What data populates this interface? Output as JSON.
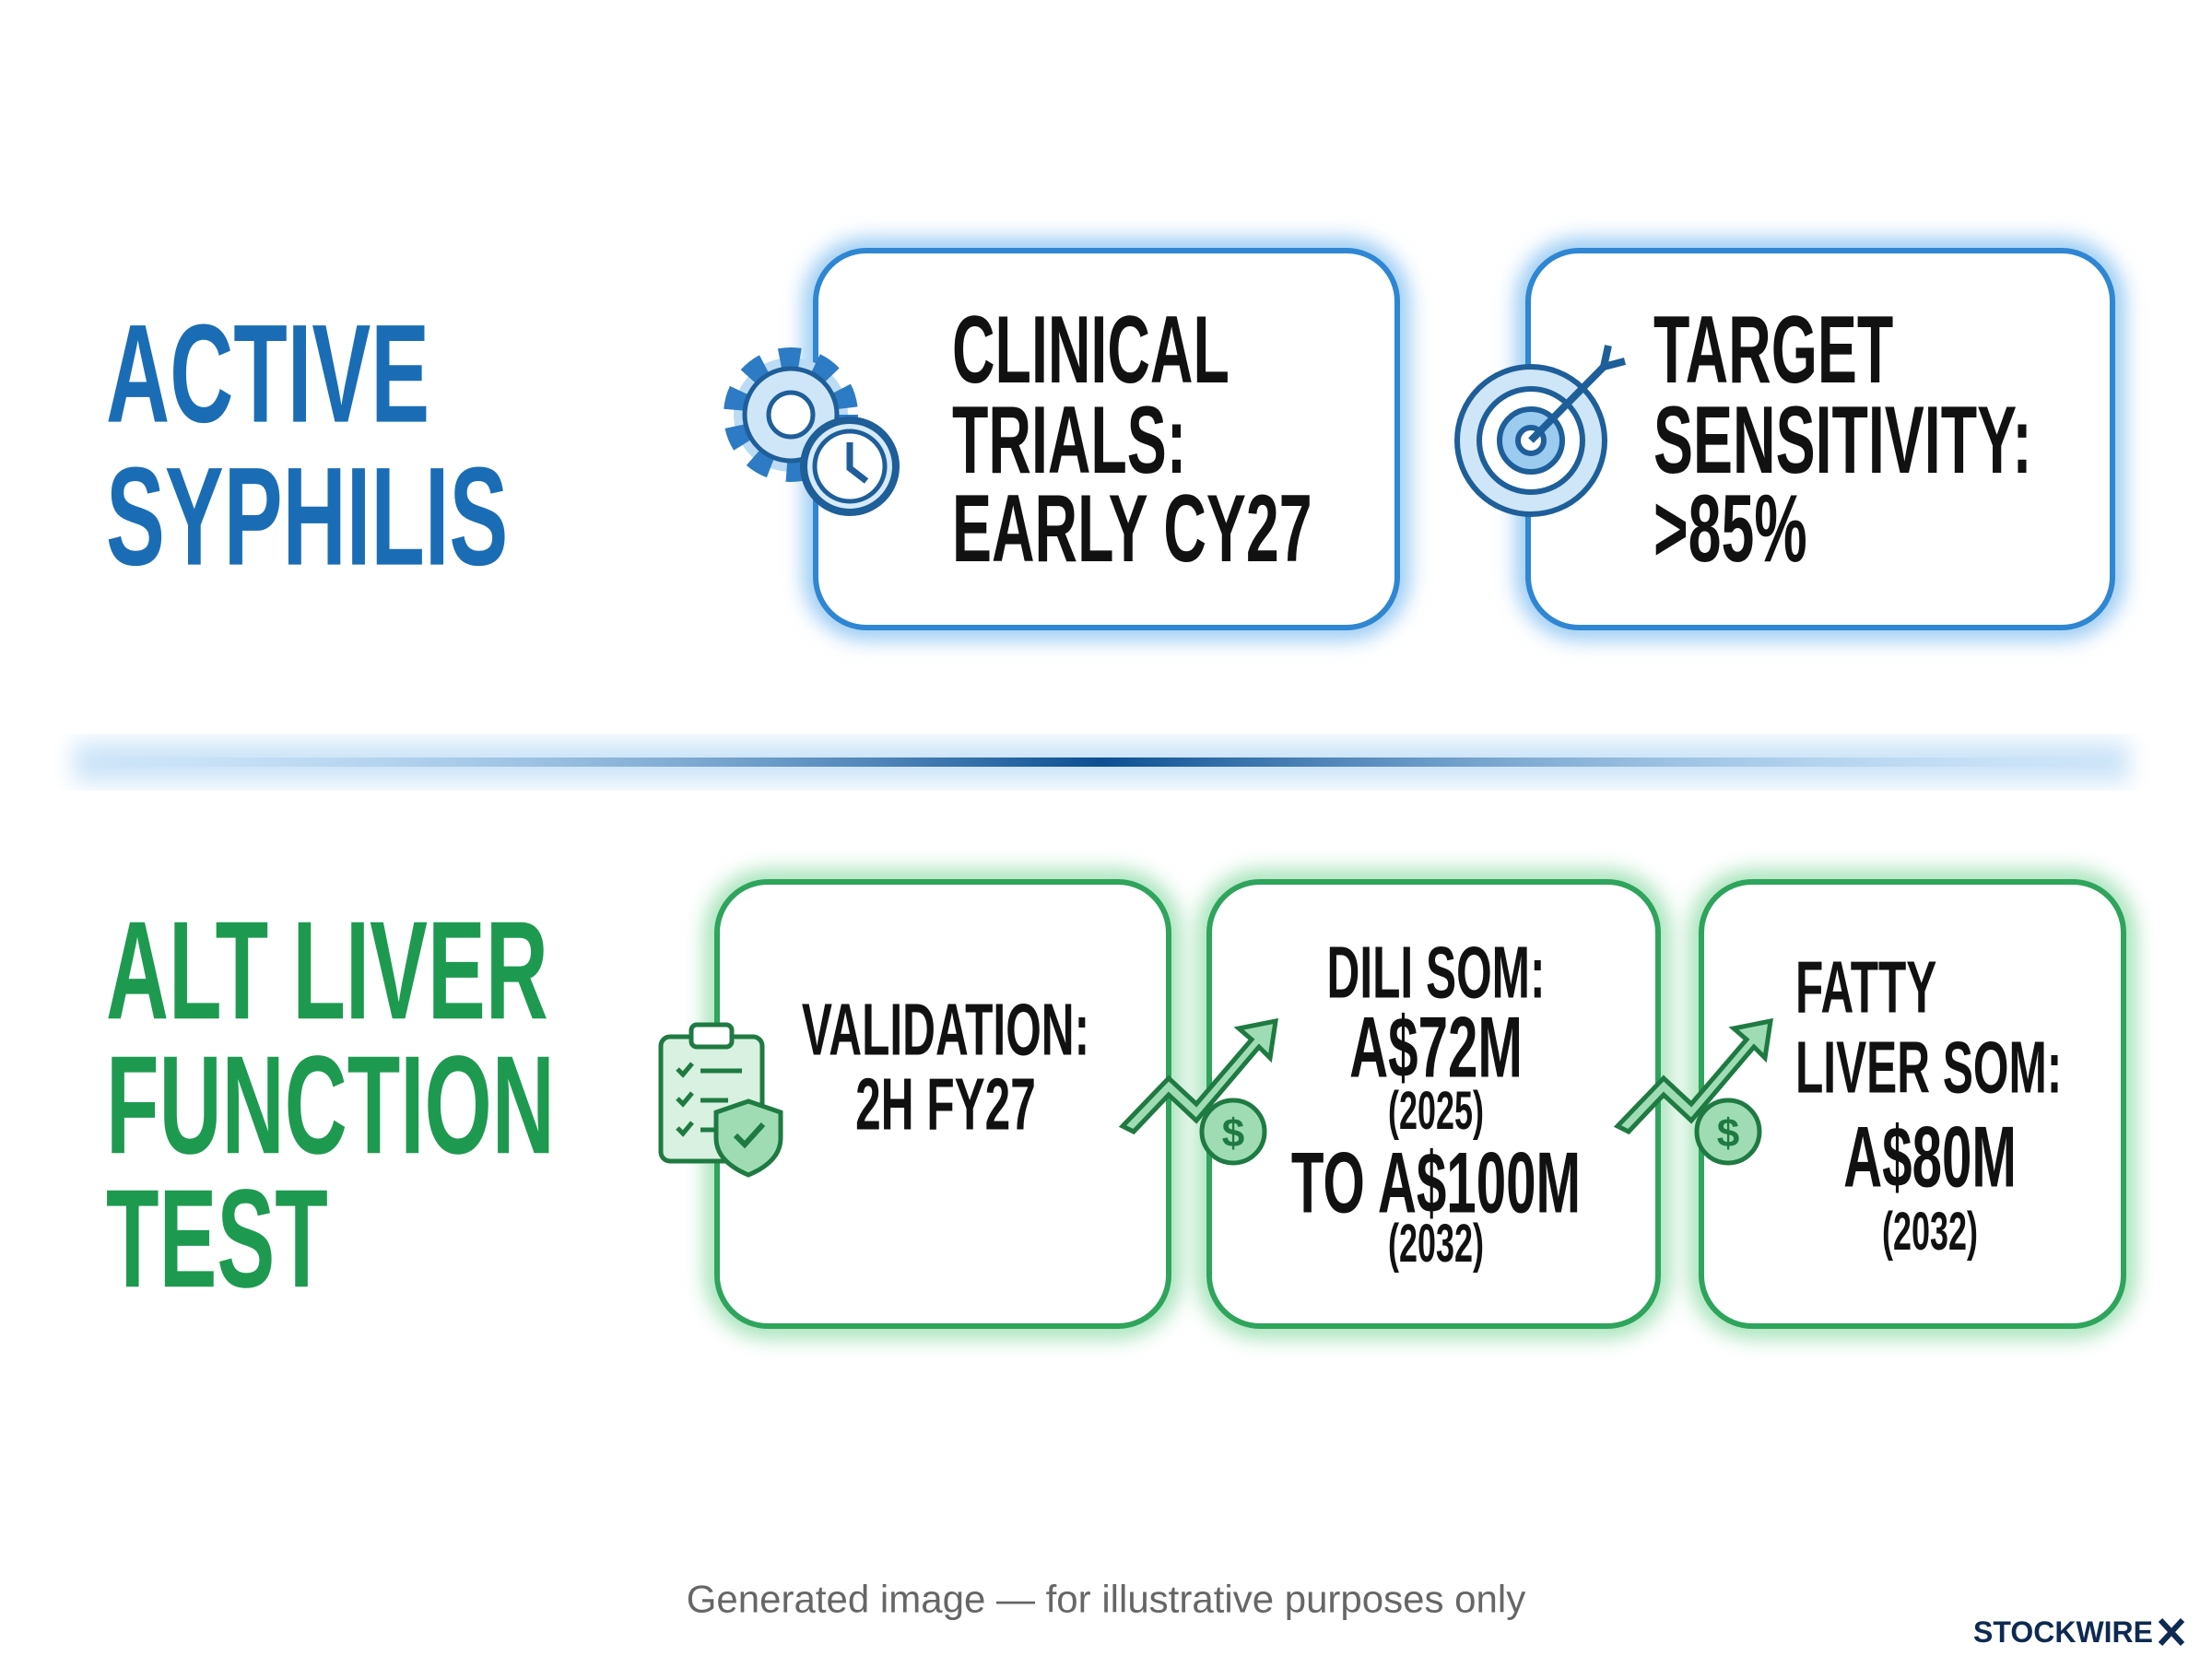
{
  "active_syphilis": {
    "title": [
      "ACTIVE",
      "SYPHILIS"
    ],
    "cards": [
      {
        "lines": [
          "CLINICAL",
          "TRIALS:",
          "EARLY CY27"
        ]
      },
      {
        "lines": [
          "TARGET",
          "SENSITIVITY:",
          ">85%"
        ]
      }
    ]
  },
  "alt_liver": {
    "title": [
      "ALT LIVER",
      "FUNCTION",
      "TEST"
    ],
    "cards": [
      {
        "lines": [
          "VALIDATION:",
          "2H FY27"
        ]
      },
      {
        "lines": [
          "DILI SOM:",
          "A$72M",
          "(2025)",
          "TO A$100M",
          "(2032)"
        ]
      },
      {
        "lines": [
          "FATTY",
          "LIVER SOM:",
          "A$80M",
          "(2032)"
        ]
      }
    ]
  },
  "footer": {
    "caption": "Generated image — for illustrative purposes only",
    "brand": "STOCKWIRE"
  }
}
